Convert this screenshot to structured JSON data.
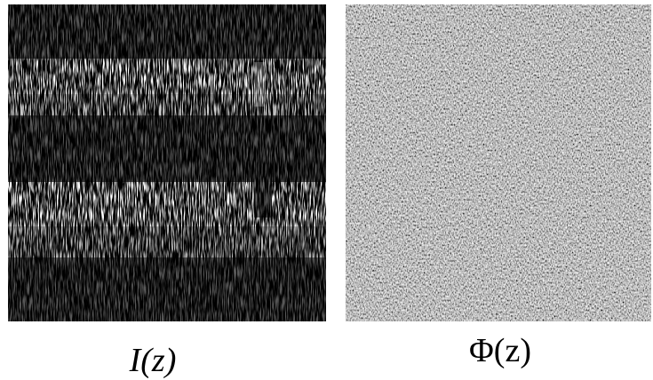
{
  "panels": [
    {
      "label": "I(z)"
    },
    {
      "label": "Φ(z)"
    }
  ]
}
